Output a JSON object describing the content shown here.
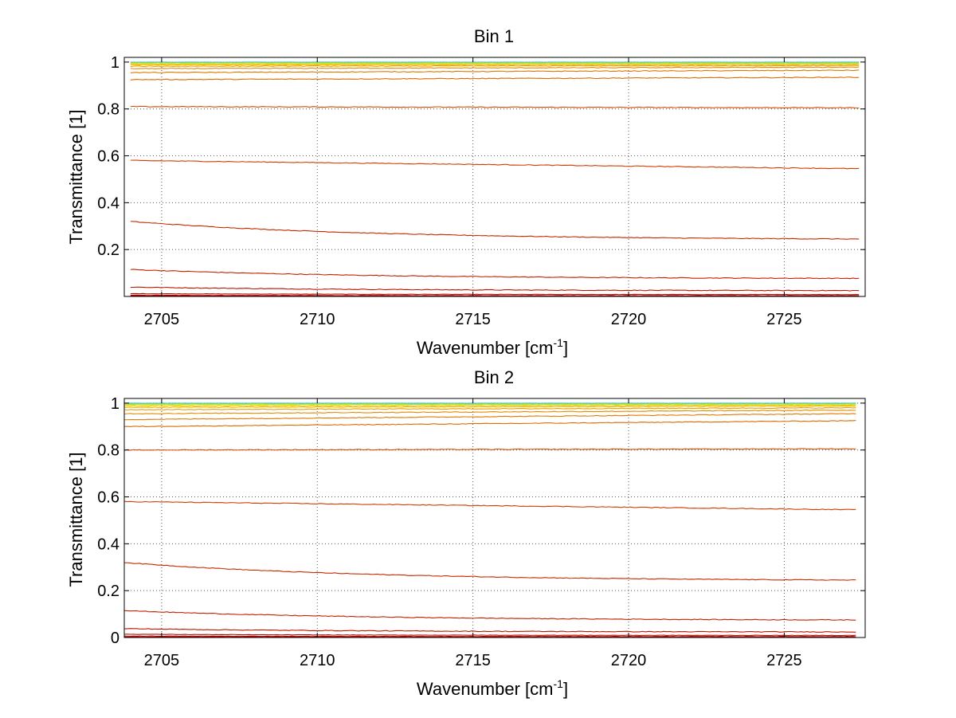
{
  "chart_data": [
    {
      "type": "line",
      "title": "Bin 1",
      "xlabel": "Wavenumber [cm",
      "xlabel_sup": "-1",
      "xlabel_end": "]",
      "ylabel": "Transmittance [1]",
      "xlim": [
        2703.8,
        2727.6
      ],
      "ylim": [
        0,
        1.02
      ],
      "xticks": [
        2705,
        2710,
        2715,
        2720,
        2725
      ],
      "xtick_labels": [
        "2705",
        "2710",
        "2715",
        "2720",
        "2725"
      ],
      "yticks": [
        0.2,
        0.4,
        0.6,
        0.8,
        1
      ],
      "ytick_labels": [
        "0.2",
        "0.4",
        "0.6",
        "0.8",
        "1"
      ],
      "grid": true,
      "x_range": [
        2704.0,
        2727.4
      ],
      "series": [
        {
          "color": "#b30000",
          "start": 0.002,
          "end": 0.001
        },
        {
          "color": "#b30000",
          "start": 0.005,
          "end": 0.003
        },
        {
          "color": "#b80a00",
          "start": 0.012,
          "end": 0.008
        },
        {
          "color": "#bf1500",
          "start": 0.04,
          "end": 0.025
        },
        {
          "color": "#c32000",
          "start": 0.115,
          "end": 0.077
        },
        {
          "color": "#c82a00",
          "start": 0.32,
          "end": 0.245
        },
        {
          "color": "#d23c00",
          "start": 0.58,
          "end": 0.545
        },
        {
          "color": "#d84a00",
          "start": 0.81,
          "end": 0.805
        },
        {
          "color": "#de6a00",
          "start": 0.925,
          "end": 0.935
        },
        {
          "color": "#e07800",
          "start": 0.955,
          "end": 0.965
        },
        {
          "color": "#e68a00",
          "start": 0.972,
          "end": 0.978
        },
        {
          "color": "#eba000",
          "start": 0.982,
          "end": 0.985
        },
        {
          "color": "#f0b800",
          "start": 0.988,
          "end": 0.99
        },
        {
          "color": "#f5cc00",
          "start": 0.992,
          "end": 0.993
        },
        {
          "color": "#e8e000",
          "start": 0.995,
          "end": 0.996
        },
        {
          "color": "#c8e600",
          "start": 0.997,
          "end": 0.997
        },
        {
          "color": "#66e0a0",
          "start": 0.999,
          "end": 0.999
        },
        {
          "color": "#33ccee",
          "start": 1.0,
          "end": 1.0
        }
      ]
    },
    {
      "type": "line",
      "title": "Bin 2",
      "xlabel": "Wavenumber [cm",
      "xlabel_sup": "-1",
      "xlabel_end": "]",
      "ylabel": "Transmittance [1]",
      "xlim": [
        2703.8,
        2727.6
      ],
      "ylim": [
        0,
        1.02
      ],
      "xticks": [
        2705,
        2710,
        2715,
        2720,
        2725
      ],
      "xtick_labels": [
        "2705",
        "2710",
        "2715",
        "2720",
        "2725"
      ],
      "yticks": [
        0,
        0.2,
        0.4,
        0.6,
        0.8,
        1
      ],
      "ytick_labels": [
        "0",
        "0.2",
        "0.4",
        "0.6",
        "0.8",
        "1"
      ],
      "grid": true,
      "x_range": [
        2703.8,
        2727.3
      ],
      "series": [
        {
          "color": "#b30000",
          "start": 0.002,
          "end": 0.001
        },
        {
          "color": "#b30000",
          "start": 0.006,
          "end": 0.004
        },
        {
          "color": "#b80a00",
          "start": 0.014,
          "end": 0.009
        },
        {
          "color": "#bf1500",
          "start": 0.038,
          "end": 0.024
        },
        {
          "color": "#c32000",
          "start": 0.115,
          "end": 0.075
        },
        {
          "color": "#c82a00",
          "start": 0.32,
          "end": 0.245
        },
        {
          "color": "#d23c00",
          "start": 0.58,
          "end": 0.545
        },
        {
          "color": "#d84a00",
          "start": 0.8,
          "end": 0.805
        },
        {
          "color": "#de6a00",
          "start": 0.9,
          "end": 0.925
        },
        {
          "color": "#e07800",
          "start": 0.93,
          "end": 0.955
        },
        {
          "color": "#e68a00",
          "start": 0.955,
          "end": 0.97
        },
        {
          "color": "#eba000",
          "start": 0.972,
          "end": 0.98
        },
        {
          "color": "#f0b800",
          "start": 0.982,
          "end": 0.987
        },
        {
          "color": "#f5cc00",
          "start": 0.988,
          "end": 0.991
        },
        {
          "color": "#e8e000",
          "start": 0.993,
          "end": 0.995
        },
        {
          "color": "#c8e600",
          "start": 0.996,
          "end": 0.997
        },
        {
          "color": "#66e0a0",
          "start": 0.998,
          "end": 0.999
        },
        {
          "color": "#33ccee",
          "start": 1.0,
          "end": 1.0
        }
      ]
    }
  ]
}
